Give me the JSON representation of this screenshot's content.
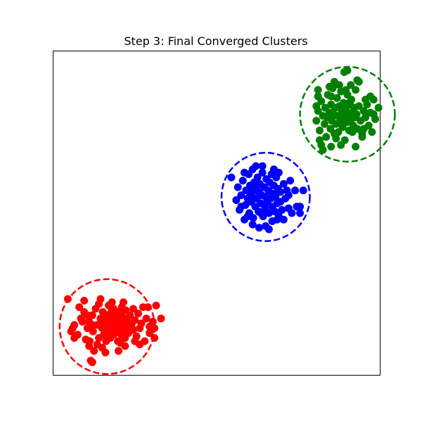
{
  "chart_data": {
    "type": "scatter",
    "title": "Step 3: Final Converged Clusters",
    "xlabel": "",
    "ylabel": "",
    "xlim": [
      -0.5,
      9.5
    ],
    "ylim": [
      -0.5,
      9.5
    ],
    "axis_ticks_visible": false,
    "grid": false,
    "legend": "none",
    "clusters": [
      {
        "color": "#ff0000",
        "center": [
          1.15,
          1.0
        ],
        "radius": 1.45,
        "circle_style": "dashed",
        "points": [
          [
            0.05,
            0.85
          ],
          [
            0.15,
            1.05
          ],
          [
            0.25,
            0.75
          ],
          [
            0.35,
            1.25
          ],
          [
            0.45,
            1.45
          ],
          [
            0.55,
            0.95
          ],
          [
            0.6,
            1.15
          ],
          [
            0.62,
            0.55
          ],
          [
            0.7,
            1.35
          ],
          [
            0.72,
            0.85
          ],
          [
            0.8,
            1.55
          ],
          [
            0.85,
            1.05
          ],
          [
            0.9,
            0.65
          ],
          [
            0.95,
            1.25
          ],
          [
            1.0,
            0.95
          ],
          [
            1.02,
            1.45
          ],
          [
            1.05,
            0.75
          ],
          [
            1.1,
            1.15
          ],
          [
            1.12,
            0.55
          ],
          [
            1.15,
            1.35
          ],
          [
            1.18,
            0.85
          ],
          [
            1.2,
            1.05
          ],
          [
            1.22,
            1.25
          ],
          [
            1.25,
            0.65
          ],
          [
            1.28,
            1.45
          ],
          [
            1.3,
            0.95
          ],
          [
            1.32,
            1.15
          ],
          [
            1.35,
            0.75
          ],
          [
            1.38,
            1.35
          ],
          [
            1.4,
            1.05
          ],
          [
            1.42,
            0.85
          ],
          [
            1.45,
            1.25
          ],
          [
            1.48,
            0.55
          ],
          [
            1.5,
            1.45
          ],
          [
            1.52,
            0.95
          ],
          [
            1.55,
            1.15
          ],
          [
            1.58,
            0.75
          ],
          [
            1.6,
            1.35
          ],
          [
            1.62,
            1.05
          ],
          [
            1.65,
            0.85
          ],
          [
            1.68,
            1.25
          ],
          [
            1.7,
            0.65
          ],
          [
            1.72,
            1.5
          ],
          [
            1.75,
            0.95
          ],
          [
            1.78,
            1.15
          ],
          [
            1.8,
            0.8
          ],
          [
            1.85,
            1.35
          ],
          [
            1.9,
            1.05
          ],
          [
            1.95,
            0.9
          ],
          [
            2.0,
            1.2
          ],
          [
            2.05,
            0.7
          ],
          [
            2.1,
            1.4
          ],
          [
            2.15,
            0.95
          ],
          [
            2.2,
            1.1
          ],
          [
            2.3,
            0.55
          ],
          [
            2.35,
            1.25
          ],
          [
            2.45,
            0.8
          ],
          [
            2.55,
            1.15
          ],
          [
            2.6,
            0.65
          ],
          [
            2.65,
            1.65
          ],
          [
            2.6,
            0.95
          ],
          [
            0.3,
            1.6
          ],
          [
            0.5,
            0.6
          ],
          [
            0.9,
            1.7
          ],
          [
            1.3,
            1.75
          ],
          [
            1.5,
            0.25
          ],
          [
            1.1,
            0.2
          ],
          [
            0.75,
            0.25
          ],
          [
            1.7,
            0.4
          ],
          [
            2.4,
            1.6
          ],
          [
            0.45,
            1.8
          ],
          [
            0.85,
            0.45
          ],
          [
            1.95,
            1.55
          ],
          [
            2.25,
            1.6
          ],
          [
            0.6,
            0.4
          ],
          [
            0.15,
            0.65
          ],
          [
            0.1,
            0.95
          ],
          [
            1.65,
            1.75
          ],
          [
            2.15,
            0.45
          ],
          [
            0.95,
            1.85
          ],
          [
            1.05,
            1.25
          ],
          [
            1.25,
            0.95
          ],
          [
            1.45,
            1.1
          ],
          [
            1.15,
            0.6
          ],
          [
            0.7,
            1.05
          ],
          [
            1.85,
            1.0
          ],
          [
            1.55,
            0.5
          ],
          [
            1.35,
            1.55
          ],
          [
            2.0,
            0.55
          ],
          [
            0.4,
            1.15
          ],
          [
            -0.05,
            1.85
          ],
          [
            0.65,
            -0.05
          ],
          [
            0.7,
            -0.1
          ],
          [
            2.8,
            1.25
          ],
          [
            1.0,
            0.35
          ],
          [
            0.95,
            1.1
          ],
          [
            1.2,
            1.65
          ],
          [
            1.6,
            1.6
          ],
          [
            0.55,
            1.35
          ],
          [
            2.45,
            1.0
          ]
        ]
      },
      {
        "color": "#0000ff",
        "center": [
          6.0,
          5.0
        ],
        "radius": 1.35,
        "circle_style": "dashed",
        "points": [
          [
            4.95,
            5.6
          ],
          [
            5.1,
            4.9
          ],
          [
            5.15,
            5.3
          ],
          [
            5.2,
            4.6
          ],
          [
            5.25,
            5.05
          ],
          [
            5.3,
            5.5
          ],
          [
            5.35,
            4.3
          ],
          [
            5.38,
            4.75
          ],
          [
            5.4,
            5.2
          ],
          [
            5.45,
            4.95
          ],
          [
            5.48,
            5.7
          ],
          [
            5.5,
            4.5
          ],
          [
            5.52,
            5.35
          ],
          [
            5.55,
            4.85
          ],
          [
            5.58,
            5.1
          ],
          [
            5.6,
            5.85
          ],
          [
            5.62,
            4.35
          ],
          [
            5.65,
            5.45
          ],
          [
            5.68,
            4.7
          ],
          [
            5.7,
            5.25
          ],
          [
            5.72,
            4.95
          ],
          [
            5.75,
            5.6
          ],
          [
            5.78,
            4.55
          ],
          [
            5.8,
            5.15
          ],
          [
            5.82,
            5.4
          ],
          [
            5.85,
            4.8
          ],
          [
            5.88,
            5.05
          ],
          [
            5.9,
            5.95
          ],
          [
            5.92,
            4.4
          ],
          [
            5.95,
            5.3
          ],
          [
            5.98,
            4.65
          ],
          [
            6.0,
            5.0
          ],
          [
            6.02,
            5.55
          ],
          [
            6.05,
            4.85
          ],
          [
            6.08,
            5.2
          ],
          [
            6.1,
            4.5
          ],
          [
            6.12,
            5.45
          ],
          [
            6.15,
            4.95
          ],
          [
            6.18,
            5.7
          ],
          [
            6.2,
            4.7
          ],
          [
            6.22,
            5.1
          ],
          [
            6.25,
            5.35
          ],
          [
            6.28,
            4.55
          ],
          [
            6.3,
            5.0
          ],
          [
            6.32,
            5.6
          ],
          [
            6.35,
            4.8
          ],
          [
            6.38,
            5.25
          ],
          [
            6.4,
            4.4
          ],
          [
            6.45,
            5.15
          ],
          [
            6.5,
            4.6
          ],
          [
            6.55,
            5.4
          ],
          [
            6.6,
            4.95
          ],
          [
            6.65,
            5.2
          ],
          [
            6.7,
            4.65
          ],
          [
            6.75,
            5.5
          ],
          [
            6.8,
            4.5
          ],
          [
            6.9,
            5.2
          ],
          [
            6.95,
            4.7
          ],
          [
            7.05,
            4.5
          ],
          [
            7.05,
            4.7
          ],
          [
            7.15,
            5.2
          ],
          [
            5.6,
            4.15
          ],
          [
            5.8,
            4.05
          ],
          [
            6.0,
            4.1
          ],
          [
            6.2,
            4.25
          ],
          [
            5.45,
            4.4
          ],
          [
            5.25,
            4.7
          ],
          [
            5.7,
            5.95
          ],
          [
            6.4,
            5.75
          ],
          [
            6.1,
            4.0
          ],
          [
            5.55,
            5.0
          ],
          [
            6.45,
            4.85
          ],
          [
            5.9,
            5.75
          ],
          [
            6.55,
            4.3
          ],
          [
            6.0,
            4.55
          ],
          [
            5.35,
            5.75
          ],
          [
            6.7,
            5.05
          ],
          [
            5.85,
            4.5
          ],
          [
            6.25,
            5.85
          ],
          [
            5.5,
            5.15
          ],
          [
            6.35,
            4.3
          ]
        ]
      },
      {
        "color": "#008000",
        "center": [
          8.5,
          7.55
        ],
        "radius": 1.45,
        "circle_style": "dashed",
        "points": [
          [
            7.55,
            7.35
          ],
          [
            7.6,
            7.65
          ],
          [
            7.65,
            7.05
          ],
          [
            7.7,
            7.95
          ],
          [
            7.75,
            7.5
          ],
          [
            7.8,
            7.25
          ],
          [
            7.82,
            7.75
          ],
          [
            7.85,
            6.85
          ],
          [
            7.88,
            7.45
          ],
          [
            7.9,
            8.15
          ],
          [
            7.95,
            7.6
          ],
          [
            7.98,
            7.1
          ],
          [
            8.0,
            7.85
          ],
          [
            8.02,
            7.35
          ],
          [
            8.05,
            8.35
          ],
          [
            8.08,
            7.55
          ],
          [
            8.1,
            6.95
          ],
          [
            8.12,
            7.75
          ],
          [
            8.15,
            7.25
          ],
          [
            8.18,
            8.05
          ],
          [
            8.2,
            7.5
          ],
          [
            8.22,
            7.0
          ],
          [
            8.25,
            7.8
          ],
          [
            8.28,
            7.35
          ],
          [
            8.3,
            8.25
          ],
          [
            8.32,
            7.65
          ],
          [
            8.35,
            7.15
          ],
          [
            8.38,
            7.9
          ],
          [
            8.4,
            7.45
          ],
          [
            8.42,
            6.75
          ],
          [
            8.45,
            7.7
          ],
          [
            8.48,
            7.3
          ],
          [
            8.5,
            8.15
          ],
          [
            8.52,
            7.55
          ],
          [
            8.55,
            7.05
          ],
          [
            8.58,
            7.85
          ],
          [
            8.6,
            7.4
          ],
          [
            8.62,
            8.0
          ],
          [
            8.65,
            7.6
          ],
          [
            8.68,
            7.2
          ],
          [
            8.7,
            7.75
          ],
          [
            8.72,
            7.45
          ],
          [
            8.75,
            8.3
          ],
          [
            8.78,
            7.55
          ],
          [
            8.8,
            7.1
          ],
          [
            8.85,
            7.8
          ],
          [
            8.9,
            7.35
          ],
          [
            8.95,
            6.95
          ],
          [
            9.0,
            7.65
          ],
          [
            9.05,
            7.45
          ],
          [
            9.1,
            7.85
          ],
          [
            9.15,
            7.2
          ],
          [
            9.2,
            7.6
          ],
          [
            9.25,
            7.0
          ],
          [
            9.3,
            8.0
          ],
          [
            9.35,
            7.4
          ],
          [
            9.45,
            7.75
          ],
          [
            7.6,
            8.3
          ],
          [
            7.6,
            8.1
          ],
          [
            7.65,
            6.75
          ],
          [
            8.0,
            6.55
          ],
          [
            8.3,
            6.6
          ],
          [
            8.75,
            6.55
          ],
          [
            8.95,
            6.85
          ],
          [
            8.4,
            8.85
          ],
          [
            8.5,
            8.9
          ],
          [
            8.85,
            8.55
          ],
          [
            8.8,
            8.6
          ],
          [
            7.55,
            7.8
          ],
          [
            7.7,
            6.6
          ],
          [
            9.2,
            8.1
          ],
          [
            8.6,
            8.45
          ],
          [
            8.1,
            8.55
          ],
          [
            8.25,
            8.45
          ],
          [
            8.0,
            8.1
          ],
          [
            9.3,
            7.55
          ],
          [
            7.75,
            6.45
          ],
          [
            8.15,
            6.8
          ],
          [
            8.55,
            7.9
          ],
          [
            8.35,
            7.55
          ],
          [
            8.65,
            7.0
          ],
          [
            9.0,
            7.1
          ],
          [
            9.05,
            8.0
          ],
          [
            7.95,
            8.4
          ],
          [
            8.45,
            8.3
          ]
        ]
      }
    ]
  }
}
